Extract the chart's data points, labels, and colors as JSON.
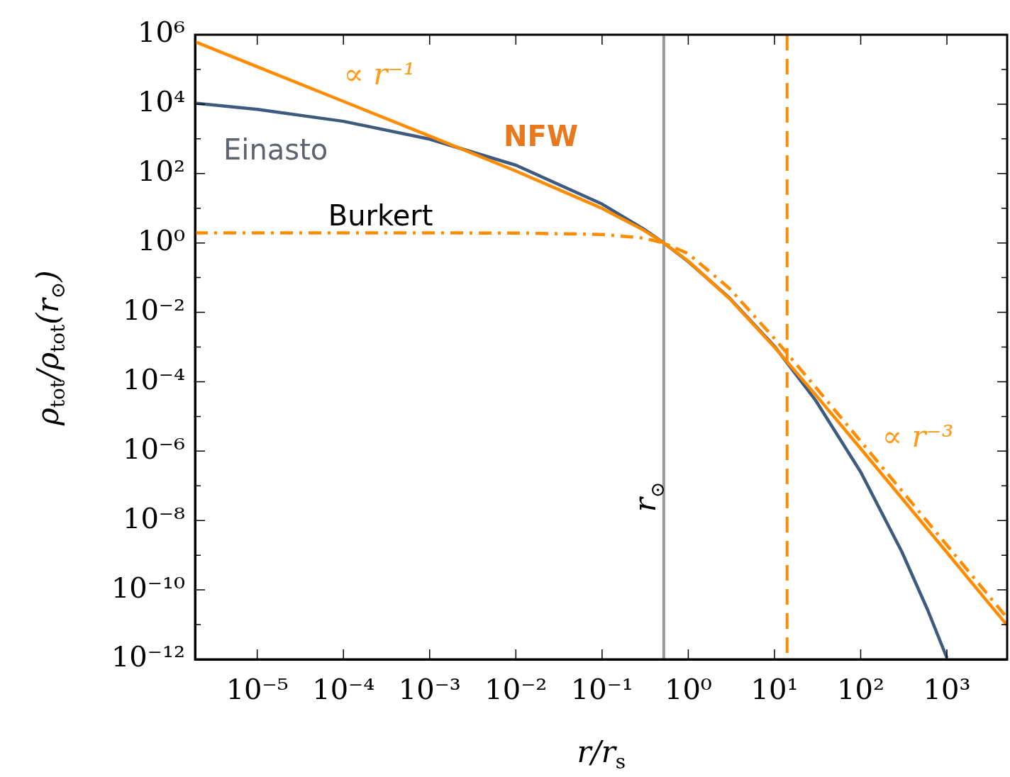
{
  "chart_data": {
    "type": "line",
    "xlabel": "r/r$_{s}$",
    "ylabel": "ρ$_{tot}$/ρ$_{tot}$(r$_{⊙}$)",
    "log": "xy",
    "marker": "none",
    "xlim": [
      1.9e-06,
      5000
    ],
    "ylim": [
      1e-12,
      1000000.0
    ],
    "xticks": [
      {
        "value": 1e-05,
        "label": "10⁻⁵"
      },
      {
        "value": 0.0001,
        "label": "10⁻⁴"
      },
      {
        "value": 0.001,
        "label": "10⁻³"
      },
      {
        "value": 0.01,
        "label": "10⁻²"
      },
      {
        "value": 0.1,
        "label": "10⁻¹"
      },
      {
        "value": 1,
        "label": "10⁰"
      },
      {
        "value": 10,
        "label": "10¹"
      },
      {
        "value": 100,
        "label": "10²"
      },
      {
        "value": 1000,
        "label": "10³"
      }
    ],
    "yticks": [
      {
        "value": 1e-12,
        "label": "10⁻¹²"
      },
      {
        "value": 1e-11,
        "label": null
      },
      {
        "value": 1e-10,
        "label": "10⁻¹⁰"
      },
      {
        "value": 1e-09,
        "label": null
      },
      {
        "value": 1e-08,
        "label": "10⁻⁸"
      },
      {
        "value": 1e-07,
        "label": null
      },
      {
        "value": 1e-06,
        "label": "10⁻⁶"
      },
      {
        "value": 1e-05,
        "label": null
      },
      {
        "value": 0.0001,
        "label": "10⁻⁴"
      },
      {
        "value": 0.001,
        "label": null
      },
      {
        "value": 0.01,
        "label": "10⁻²"
      },
      {
        "value": 0.1,
        "label": null
      },
      {
        "value": 1,
        "label": "10⁰"
      },
      {
        "value": 10,
        "label": null
      },
      {
        "value": 100,
        "label": "10²"
      },
      {
        "value": 1000,
        "label": null
      },
      {
        "value": 10000.0,
        "label": "10⁴"
      },
      {
        "value": 100000.0,
        "label": null
      },
      {
        "value": 1000000.0,
        "label": "10⁶"
      }
    ],
    "series": [
      {
        "name": "Einasto",
        "color": "#3e5a7e",
        "line_style": "solid",
        "x": [
          1.9e-06,
          1e-05,
          0.0001,
          0.001,
          0.01,
          0.1,
          0.3,
          0.52,
          1,
          3,
          10,
          30,
          100,
          300,
          600,
          1000
        ],
        "values": [
          10700.0,
          7100.0,
          3200.0,
          980,
          174,
          13.2,
          2.56,
          1,
          0.29,
          0.026,
          0.00105,
          2.9e-05,
          2.5e-07,
          1.26e-09,
          2.6e-11,
          1.1e-12
        ]
      },
      {
        "name": "NFW",
        "color": "#ff8c00",
        "line_style": "solid",
        "x": [
          1.9e-06,
          1e-05,
          0.0001,
          0.001,
          0.01,
          0.1,
          0.3,
          0.52,
          1,
          3,
          10,
          30,
          100,
          300,
          1000,
          3000,
          5000
        ],
        "values": [
          630000.0,
          120000.0,
          12000.0,
          1200.0,
          118,
          9.9,
          2.37,
          1,
          0.3,
          0.025,
          0.00099,
          4.2e-05,
          1.18e-06,
          4.4e-08,
          1.2e-09,
          4.4e-11,
          9.6e-12
        ]
      },
      {
        "name": "Burkert",
        "color": "#ff8c00",
        "line_style": "dashed",
        "x": [
          1.9e-06,
          0.0001,
          0.01,
          0.1,
          0.3,
          0.52,
          1,
          3,
          10,
          30,
          100,
          300,
          1000,
          3000,
          5000
        ],
        "values": [
          1.95,
          1.95,
          1.93,
          1.76,
          1.38,
          1,
          0.49,
          0.049,
          0.00176,
          7e-05,
          1.93e-06,
          7.2e-08,
          1.95e-09,
          7.2e-11,
          1.56e-11
        ]
      }
    ],
    "ref_lines": [
      {
        "axis": "x",
        "value": 0.52,
        "label": "r$_{⊙}$",
        "color": "#999999",
        "line_style": "solid"
      },
      {
        "axis": "x",
        "value": 14,
        "color": "#ff8c00",
        "line_style": "dashed"
      }
    ],
    "annotations": [
      "∝ r⁻¹",
      "∝ r⁻³"
    ]
  }
}
